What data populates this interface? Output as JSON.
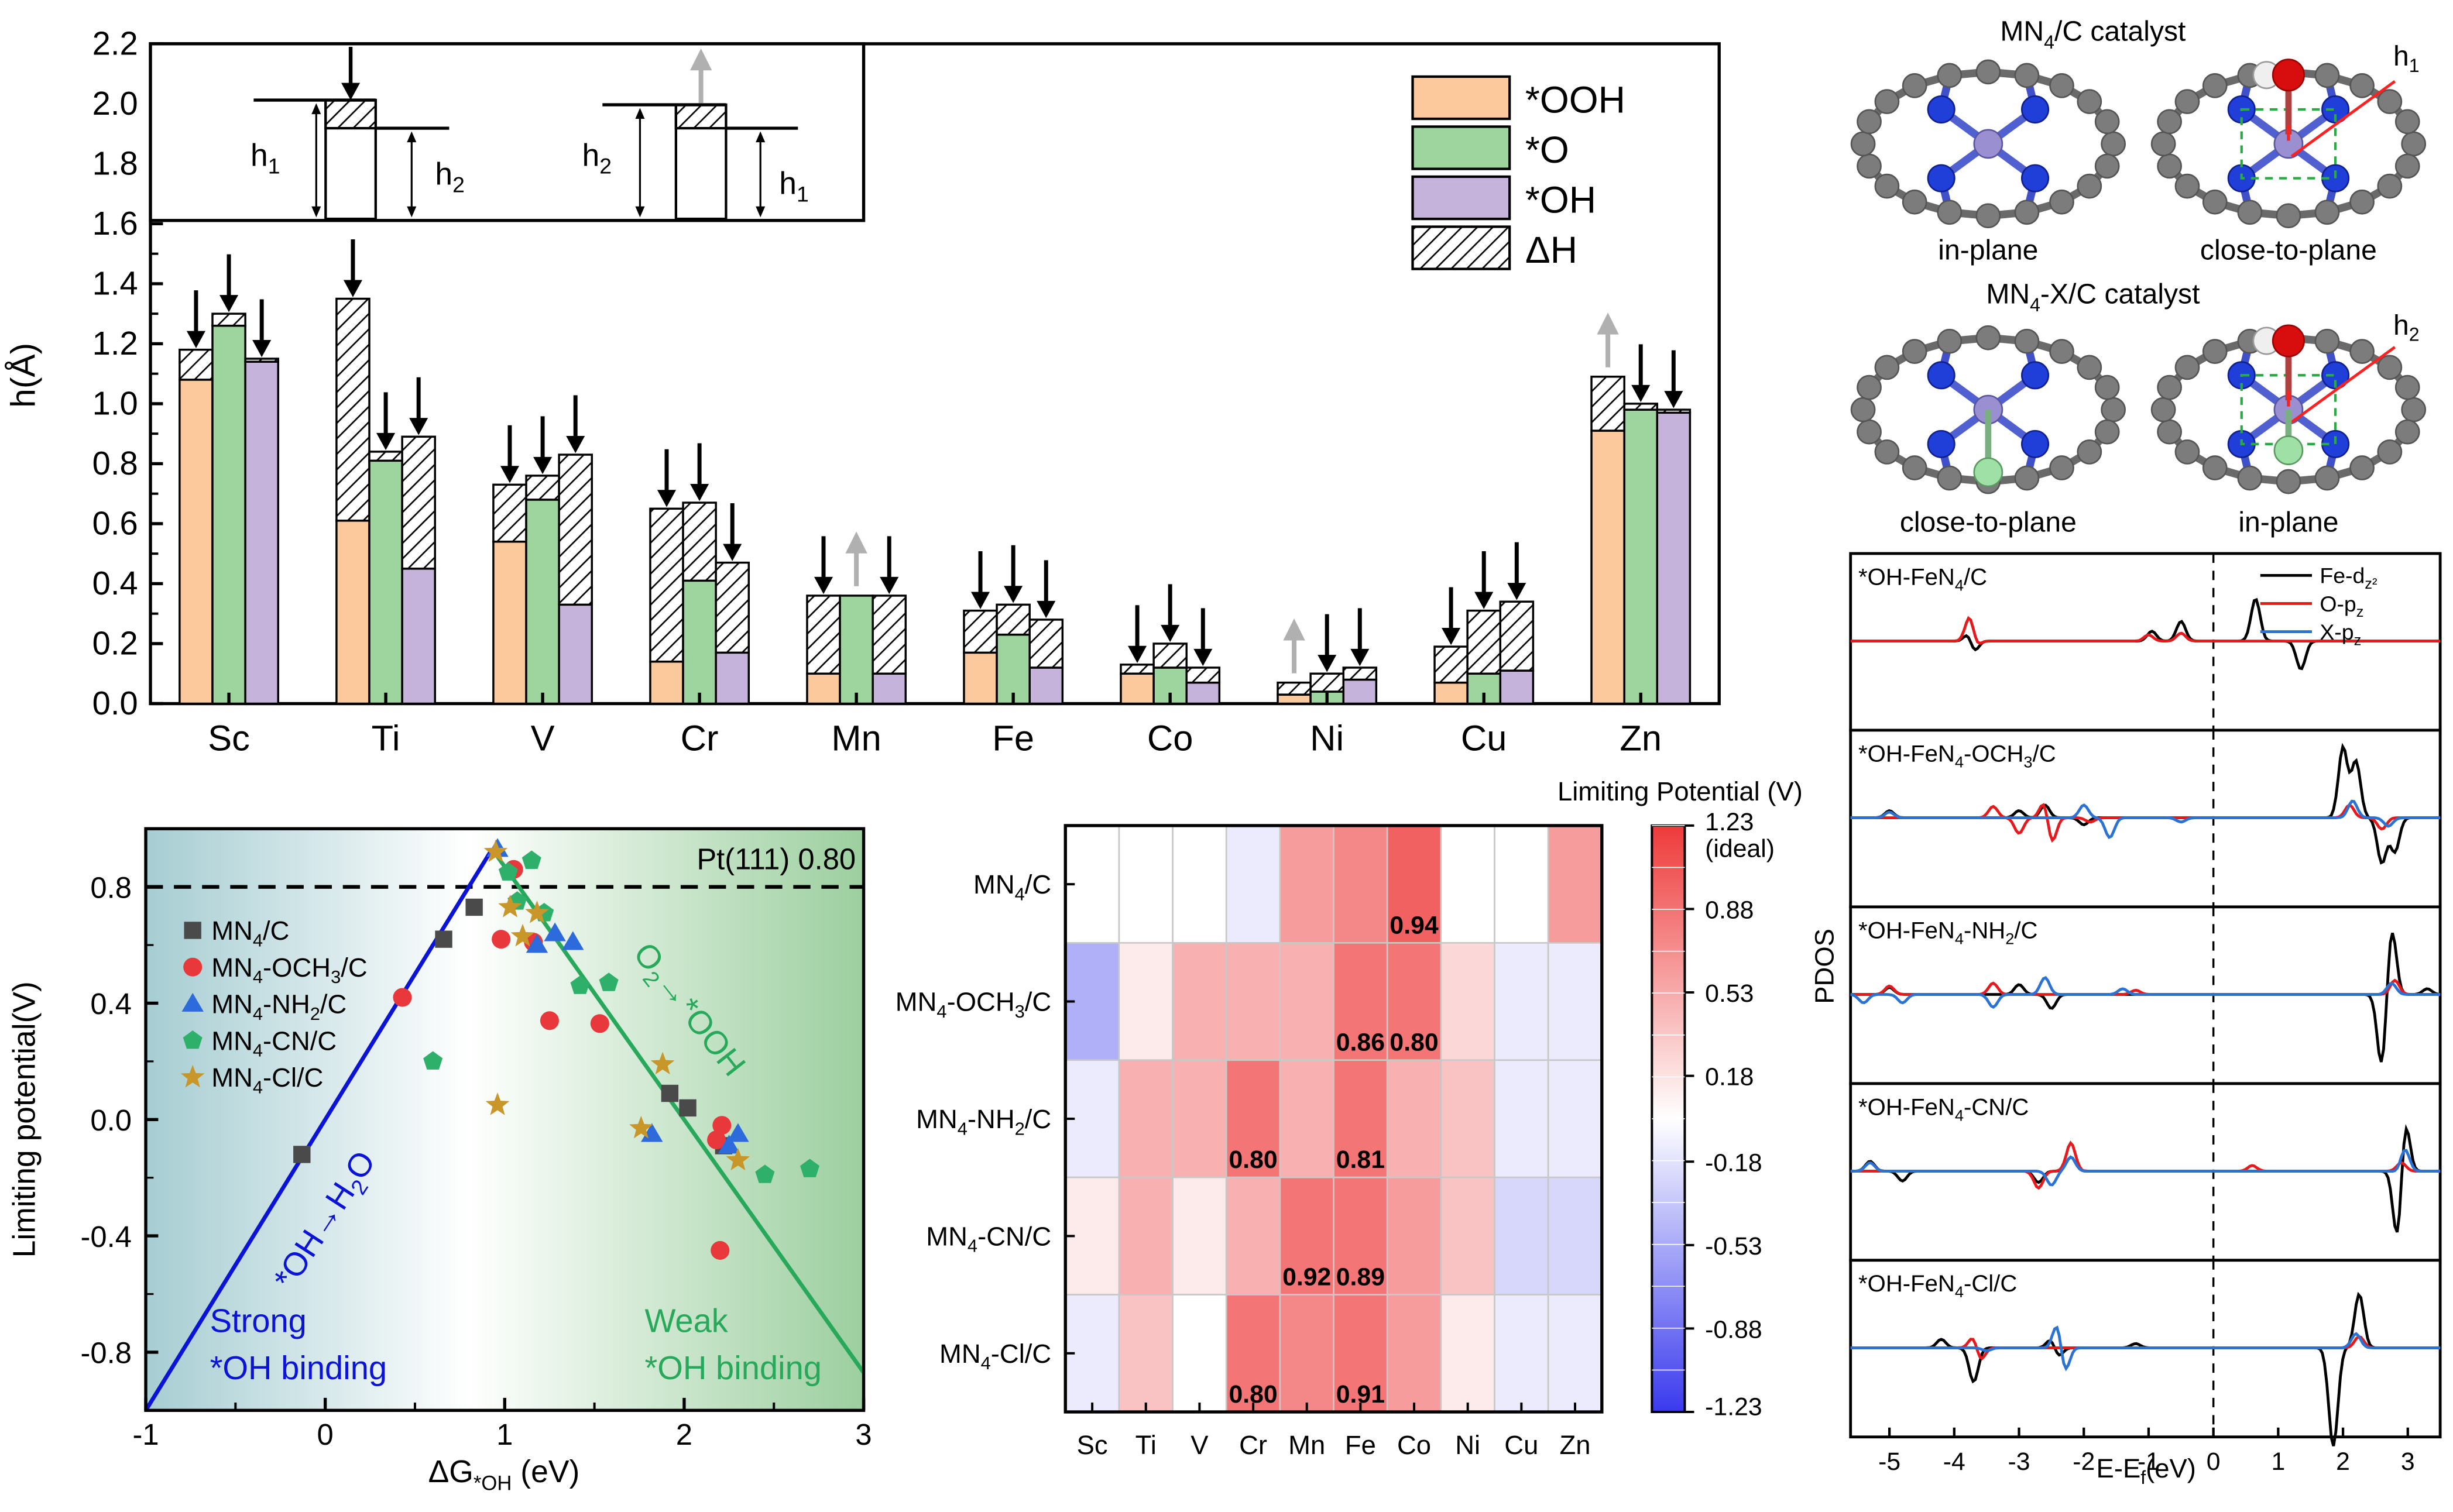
{
  "colors": {
    "ooh": "#fbc99c",
    "o": "#9ed59f",
    "oh": "#c6b3db",
    "up_arrow": "#b0b0b0",
    "down_arrow": "#000000",
    "strong_line": "#0b13d6",
    "weak_line": "#27a85a",
    "mn4c": "#4a4a4a",
    "och3": "#e8383b",
    "nh2": "#2d6bdc",
    "cn": "#2fb06a",
    "cl": "#c9962a",
    "pdos_fe": "#000000",
    "pdos_o": "#e8191c",
    "pdos_x": "#2a72d4",
    "atom_c": "#7c7c7c",
    "atom_n": "#1f3fd8",
    "atom_m": "#9a8fd0",
    "atom_o": "#d80e0e",
    "atom_h": "#efefef",
    "atom_x": "#9fe0a6"
  },
  "chart_data": [
    {
      "type": "bar",
      "ylabel": "h(Å)",
      "ylim": [
        0.0,
        2.2
      ],
      "yticks": [
        "0.0",
        "0.2",
        "0.4",
        "0.6",
        "0.8",
        "1.0",
        "1.2",
        "1.4",
        "1.6",
        "1.8",
        "2.0",
        "2.2"
      ],
      "categories": [
        "Sc",
        "Ti",
        "V",
        "Cr",
        "Mn",
        "Fe",
        "Co",
        "Ni",
        "Cu",
        "Zn"
      ],
      "legend": [
        "*OOH",
        "*O",
        "*OH",
        "ΔH"
      ],
      "series": [
        {
          "name": "*OOH",
          "h2": [
            1.08,
            0.61,
            0.54,
            0.14,
            0.1,
            0.17,
            0.1,
            0.03,
            0.07,
            0.91
          ],
          "h1": [
            1.18,
            1.35,
            0.73,
            0.65,
            0.36,
            0.31,
            0.13,
            0.07,
            0.19,
            1.09
          ],
          "arrow": [
            "down",
            "down",
            "down",
            "down",
            "down",
            "down",
            "down",
            "up",
            "down",
            "up"
          ]
        },
        {
          "name": "*O",
          "h2": [
            1.26,
            0.81,
            0.68,
            0.41,
            0.36,
            0.23,
            0.12,
            0.04,
            0.1,
            0.98
          ],
          "h1": [
            1.3,
            0.84,
            0.76,
            0.67,
            0.36,
            0.33,
            0.2,
            0.1,
            0.31,
            1.0
          ],
          "arrow": [
            "down",
            "down",
            "down",
            "down",
            "up",
            "down",
            "down",
            "down",
            "down",
            "down"
          ]
        },
        {
          "name": "*OH",
          "h2": [
            1.14,
            0.45,
            0.33,
            0.17,
            0.1,
            0.12,
            0.07,
            0.08,
            0.11,
            0.97
          ],
          "h1": [
            1.15,
            0.89,
            0.83,
            0.47,
            0.36,
            0.28,
            0.12,
            0.12,
            0.34,
            0.98
          ],
          "arrow": [
            "down",
            "down",
            "down",
            "down",
            "down",
            "down",
            "down",
            "down",
            "down",
            "down"
          ]
        }
      ],
      "inset_labels": {
        "h1": "h",
        "h1_sub": "1",
        "h2": "h",
        "h2_sub": "2"
      },
      "inset_ticks": [
        "1.8",
        "2.0",
        "2.2"
      ]
    },
    {
      "type": "scatter",
      "xlabel_pre": "ΔG",
      "xlabel_sub": "*OH",
      "xlabel_post": " (eV)",
      "ylabel": "Limiting potential(V)",
      "xlim": [
        -1,
        3
      ],
      "ylim": [
        -1.0,
        1.0
      ],
      "xticks": [
        "-1",
        "0",
        "1",
        "2",
        "3"
      ],
      "yticks": [
        "-0.8",
        "-0.4",
        "0.0",
        "0.4",
        "0.8"
      ],
      "reference_line": {
        "y": 0.8,
        "label": "Pt(111) 0.80"
      },
      "lines": [
        {
          "name": "*OH→H2O",
          "points": [
            [
              -1.0,
              -1.0
            ],
            [
              0.93,
              0.93
            ]
          ]
        },
        {
          "name": "O2→*OOH",
          "points": [
            [
              0.93,
              0.93
            ],
            [
              3.0,
              -0.87
            ]
          ]
        }
      ],
      "line_labels": {
        "strong": "*OH→H",
        "strong_sub": "2",
        "strong_post": "O",
        "weak": "O",
        "weak_sub": "2",
        "weak_post": "→*OOH"
      },
      "region_labels": {
        "strong_1": "Strong",
        "strong_2": "*OH binding",
        "weak_1": "Weak",
        "weak_2": "*OH binding"
      },
      "series": [
        {
          "name": "MN4/C",
          "label_pre": "MN",
          "label_sub": "4",
          "label_post": "/C",
          "marker": "square",
          "points": [
            [
              -0.13,
              -0.12
            ],
            [
              0.66,
              0.62
            ],
            [
              0.83,
              0.73
            ],
            [
              1.92,
              0.09
            ],
            [
              2.02,
              0.04
            ],
            [
              2.22,
              -0.09
            ]
          ]
        },
        {
          "name": "MN4-OCH3/C",
          "label_pre": "MN",
          "label_sub": "4",
          "label_post": "-OCH",
          "label_sub2": "3",
          "label_post2": "/C",
          "marker": "circle",
          "points": [
            [
              0.43,
              0.42
            ],
            [
              0.98,
              0.62
            ],
            [
              1.05,
              0.86
            ],
            [
              1.16,
              0.61
            ],
            [
              1.25,
              0.34
            ],
            [
              1.53,
              0.33
            ],
            [
              2.18,
              -0.07
            ],
            [
              2.21,
              -0.02
            ],
            [
              2.2,
              -0.45
            ]
          ]
        },
        {
          "name": "MN4-NH2/C",
          "label_pre": "MN",
          "label_sub": "4",
          "label_post": "-NH",
          "label_sub2": "2",
          "label_post2": "/C",
          "marker": "triangle",
          "points": [
            [
              0.96,
              0.93
            ],
            [
              1.18,
              0.6
            ],
            [
              1.28,
              0.64
            ],
            [
              1.38,
              0.61
            ],
            [
              1.82,
              -0.05
            ],
            [
              2.25,
              -0.09
            ],
            [
              2.3,
              -0.05
            ]
          ]
        },
        {
          "name": "MN4-CN/C",
          "label_pre": "MN",
          "label_sub": "4",
          "label_post": "-CN/C",
          "marker": "pentagon",
          "points": [
            [
              0.6,
              0.2
            ],
            [
              1.02,
              0.85
            ],
            [
              1.07,
              0.75
            ],
            [
              1.15,
              0.89
            ],
            [
              1.22,
              0.71
            ],
            [
              1.42,
              0.46
            ],
            [
              1.58,
              0.47
            ],
            [
              2.45,
              -0.19
            ],
            [
              2.7,
              -0.17
            ]
          ]
        },
        {
          "name": "MN4-Cl/C",
          "label_pre": "MN",
          "label_sub": "4",
          "label_post": "-Cl/C",
          "marker": "star",
          "points": [
            [
              0.96,
              0.05
            ],
            [
              0.95,
              0.92
            ],
            [
              1.03,
              0.73
            ],
            [
              1.1,
              0.63
            ],
            [
              1.18,
              0.71
            ],
            [
              1.88,
              0.19
            ],
            [
              1.76,
              -0.03
            ],
            [
              2.3,
              -0.14
            ]
          ]
        }
      ]
    },
    {
      "type": "heatmap",
      "title": "Limiting Potential (V)",
      "columns": [
        "Sc",
        "Ti",
        "V",
        "Cr",
        "Mn",
        "Fe",
        "Co",
        "Ni",
        "Cu",
        "Zn"
      ],
      "rows": [
        {
          "pre": "MN",
          "sub": "4",
          "post": "/C",
          "sub2": "",
          "post2": ""
        },
        {
          "pre": "MN",
          "sub": "4",
          "post": "-OCH",
          "sub2": "3",
          "post2": "/C"
        },
        {
          "pre": "MN",
          "sub": "4",
          "post": "-NH",
          "sub2": "2",
          "post2": "/C"
        },
        {
          "pre": "MN",
          "sub": "4",
          "post": "-CN/C",
          "sub2": "",
          "post2": ""
        },
        {
          "pre": "MN",
          "sub": "4",
          "post": "-Cl/C",
          "sub2": "",
          "post2": ""
        }
      ],
      "values": [
        [
          0.05,
          0.05,
          0.05,
          -0.12,
          0.62,
          0.74,
          0.94,
          0.05,
          0.05,
          0.62
        ],
        [
          -0.55,
          0.12,
          0.45,
          0.55,
          0.45,
          0.86,
          0.8,
          0.2,
          -0.15,
          -0.15
        ],
        [
          -0.1,
          0.45,
          0.45,
          0.8,
          0.45,
          0.81,
          0.45,
          0.4,
          -0.1,
          -0.1
        ],
        [
          0.14,
          0.45,
          0.14,
          0.5,
          0.92,
          0.89,
          0.6,
          0.4,
          -0.25,
          -0.25
        ],
        [
          -0.1,
          0.4,
          0.02,
          0.8,
          0.68,
          0.91,
          0.6,
          0.15,
          -0.12,
          -0.12
        ]
      ],
      "annotations": [
        {
          "row": 0,
          "col": 6,
          "text": "0.94"
        },
        {
          "row": 1,
          "col": 5,
          "text": "0.86"
        },
        {
          "row": 1,
          "col": 6,
          "text": "0.80"
        },
        {
          "row": 2,
          "col": 3,
          "text": "0.80"
        },
        {
          "row": 2,
          "col": 5,
          "text": "0.81"
        },
        {
          "row": 3,
          "col": 4,
          "text": "0.92"
        },
        {
          "row": 3,
          "col": 5,
          "text": "0.89"
        },
        {
          "row": 4,
          "col": 3,
          "text": "0.80"
        },
        {
          "row": 4,
          "col": 5,
          "text": "0.91"
        }
      ],
      "colorbar_range": [
        -1.23,
        1.23
      ],
      "colorbar_ticks": [
        "1.23",
        "0.88",
        "0.53",
        "0.18",
        "-0.18",
        "-0.53",
        "-0.88",
        "-1.23"
      ],
      "colorbar_ideal": "(ideal)"
    },
    {
      "type": "line",
      "ylabel": "PDOS",
      "xlabel_pre": "E-E",
      "xlabel_sub": "f",
      "xlabel_post": "(eV)",
      "xlim": [
        -5.6,
        3.5
      ],
      "xticks": [
        "-5",
        "-4",
        "-3",
        "-2",
        "-1",
        "0",
        "1",
        "2",
        "3"
      ],
      "legend": [
        {
          "pre": "Fe-d",
          "sub": "z²",
          "key": "fe"
        },
        {
          "pre": "O-p",
          "sub": "z",
          "key": "o"
        },
        {
          "pre": "X-p",
          "sub": "z",
          "key": "x"
        }
      ],
      "panels": [
        {
          "pre": "*OH-FeN",
          "sub": "4",
          "post": "/C",
          "sub2": "",
          "post2": "",
          "fe": [
            [
              -3.75,
              0.9
            ],
            [
              -3.72,
              -1.0
            ],
            [
              -0.95,
              0.35
            ],
            [
              -0.5,
              0.7
            ],
            [
              0.65,
              1.5
            ],
            [
              1.35,
              -1.0
            ]
          ],
          "o": [
            [
              -3.75,
              1.2
            ],
            [
              -3.7,
              -0.55
            ],
            [
              -1.0,
              0.22
            ],
            [
              -0.5,
              0.28
            ]
          ],
          "x": []
        },
        {
          "pre": "*OH-FeN",
          "sub": "4",
          "post": "-OCH",
          "sub2": "3",
          "post2": "/C",
          "fe": [
            [
              -5.0,
              0.25
            ],
            [
              -3.0,
              0.25
            ],
            [
              -2.6,
              0.45
            ],
            [
              -2.0,
              -0.25
            ],
            [
              2.0,
              2.5
            ],
            [
              2.2,
              2.0
            ],
            [
              2.6,
              -1.6
            ],
            [
              2.8,
              -1.2
            ]
          ],
          "o": [
            [
              -3.4,
              0.4
            ],
            [
              -3.0,
              -0.55
            ],
            [
              -2.6,
              0.7
            ],
            [
              -2.5,
              -1.0
            ],
            [
              -1.9,
              -0.15
            ],
            [
              2.1,
              0.45
            ],
            [
              2.6,
              -0.4
            ]
          ],
          "x": [
            [
              -5.0,
              0.2
            ],
            [
              -2.0,
              0.45
            ],
            [
              -1.6,
              -0.7
            ],
            [
              -0.5,
              -0.15
            ],
            [
              2.15,
              0.6
            ],
            [
              2.7,
              -0.3
            ]
          ]
        },
        {
          "pre": "*OH-FeN",
          "sub": "4",
          "post": "-NH",
          "sub2": "2",
          "post2": "/C",
          "fe": [
            [
              -5.0,
              0.25
            ],
            [
              -3.0,
              0.35
            ],
            [
              -2.5,
              -0.5
            ],
            [
              2.75,
              2.4
            ],
            [
              2.6,
              -2.6
            ],
            [
              3.3,
              0.2
            ]
          ],
          "o": [
            [
              -5.0,
              0.3
            ],
            [
              -3.4,
              0.4
            ],
            [
              -2.45,
              1.5
            ],
            [
              -2.45,
              -1.5
            ],
            [
              -1.2,
              0.15
            ],
            [
              2.8,
              0.5
            ]
          ],
          "x": [
            [
              -5.4,
              -0.3
            ],
            [
              -4.8,
              -0.3
            ],
            [
              -3.4,
              -0.45
            ],
            [
              -2.6,
              0.6
            ],
            [
              -1.4,
              0.2
            ],
            [
              2.75,
              0.4
            ]
          ]
        },
        {
          "pre": "*OH-FeN",
          "sub": "4",
          "post": "-CN/C",
          "sub2": "",
          "post2": "",
          "fe": [
            [
              -5.3,
              0.35
            ],
            [
              -4.8,
              -0.35
            ],
            [
              -2.2,
              0.5
            ],
            [
              -2.7,
              -0.4
            ],
            [
              2.95,
              2.2
            ],
            [
              2.85,
              -2.8
            ]
          ],
          "o": [
            [
              -2.2,
              1.0
            ],
            [
              -2.7,
              -0.6
            ],
            [
              0.6,
              0.2
            ],
            [
              2.9,
              0.3
            ]
          ],
          "x": [
            [
              -5.3,
              0.3
            ],
            [
              -2.2,
              0.5
            ],
            [
              -2.5,
              -0.5
            ],
            [
              2.95,
              0.9
            ],
            [
              2.9,
              -0.2
            ]
          ]
        },
        {
          "pre": "*OH-FeN",
          "sub": "4",
          "post": "-Cl/C",
          "sub2": "",
          "post2": "",
          "fe": [
            [
              -4.2,
              0.3
            ],
            [
              -3.7,
              -1.2
            ],
            [
              -2.5,
              0.35
            ],
            [
              -2.4,
              -0.35
            ],
            [
              -1.2,
              0.15
            ],
            [
              2.25,
              1.9
            ],
            [
              1.85,
              -3.5
            ]
          ],
          "o": [
            [
              -3.7,
              0.45
            ],
            [
              -3.6,
              -0.5
            ],
            [
              -2.4,
              0.55
            ],
            [
              -2.4,
              -0.55
            ],
            [
              2.25,
              0.4
            ]
          ],
          "x": [
            [
              -3.5,
              0.5
            ],
            [
              -3.5,
              -0.6
            ],
            [
              -2.4,
              1.0
            ],
            [
              -2.3,
              -1.0
            ],
            [
              2.2,
              0.5
            ]
          ]
        }
      ]
    }
  ],
  "structures": {
    "title1_pre": "MN",
    "title1_sub": "4",
    "title1_post": "/C catalyst",
    "title2_pre": "MN",
    "title2_sub": "4",
    "title2_post": "-X/C catalyst",
    "captions": [
      "in-plane",
      "close-to-plane",
      "close-to-plane",
      "in-plane"
    ],
    "h1_label": "h",
    "h1_sub": "1",
    "h2_label": "h",
    "h2_sub": "2"
  }
}
